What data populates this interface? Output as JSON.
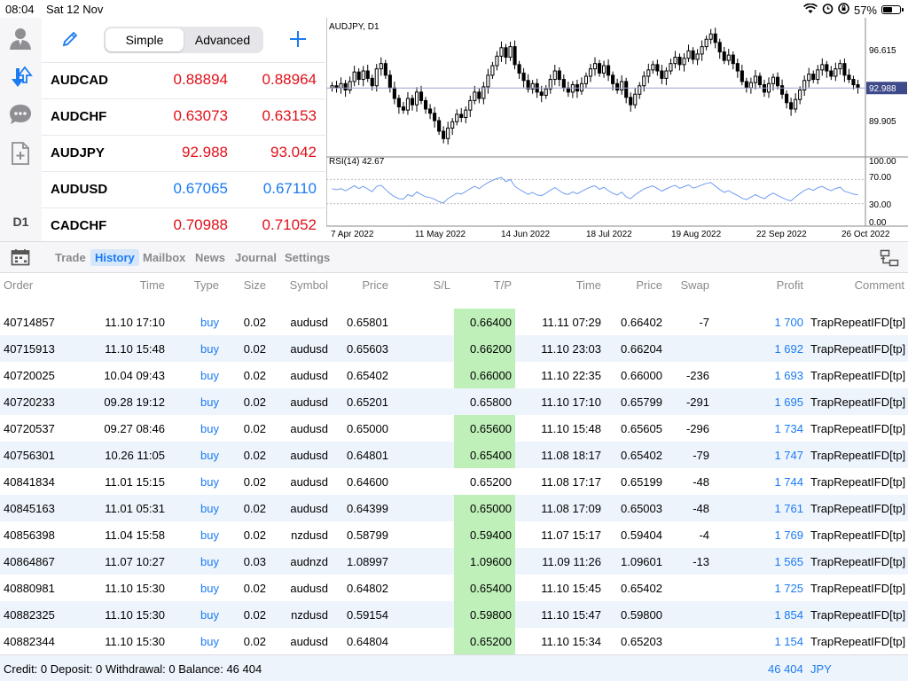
{
  "status_bar": {
    "time": "08:04",
    "date": "Sat 12 Nov",
    "battery": "57%"
  },
  "sidebar": {
    "timeframe": "D1"
  },
  "quotes": {
    "mode_simple": "Simple",
    "mode_advanced": "Advanced",
    "items": [
      {
        "symbol": "AUDCAD",
        "bid": "0.88894",
        "ask": "0.88964",
        "color": "red"
      },
      {
        "symbol": "AUDCHF",
        "bid": "0.63073",
        "ask": "0.63153",
        "color": "red"
      },
      {
        "symbol": "AUDJPY",
        "bid": "92.988",
        "ask": "93.042",
        "color": "red"
      },
      {
        "symbol": "AUDUSD",
        "bid": "0.67065",
        "ask": "0.67110",
        "color": "blue"
      },
      {
        "symbol": "CADCHF",
        "bid": "0.70988",
        "ask": "0.71052",
        "color": "red"
      }
    ]
  },
  "chart": {
    "title": "AUDJPY, D1",
    "price_ticks": [
      "96.615",
      "89.905"
    ],
    "current_price": "92.988",
    "rsi_label": "RSI(14) 42.67",
    "rsi_ticks": [
      "100.00",
      "70.00",
      "30.00",
      "0.00"
    ],
    "date_labels": [
      "7 Apr 2022",
      "11 May 2022",
      "14 Jun 2022",
      "18 Jul 2022",
      "19 Aug 2022",
      "22 Sep 2022",
      "26 Oct 2022"
    ]
  },
  "tabs": [
    "Trade",
    "History",
    "Mailbox",
    "News",
    "Journal",
    "Settings"
  ],
  "history": {
    "columns": [
      "Order",
      "Time",
      "Type",
      "Size",
      "Symbol",
      "Price",
      "S/L",
      "T/P",
      "Time",
      "Price",
      "Swap",
      "Profit",
      "Comment"
    ],
    "rows": [
      [
        "40714857",
        "11.10 17:10",
        "buy",
        "0.02",
        "audusd",
        "0.65801",
        "",
        "0.66400",
        "11.11 07:29",
        "0.66402",
        "-7",
        "1 700",
        "TrapRepeatIFD[tp]"
      ],
      [
        "40715913",
        "11.10 15:48",
        "buy",
        "0.02",
        "audusd",
        "0.65603",
        "",
        "0.66200",
        "11.10 23:03",
        "0.66204",
        "",
        "1 692",
        "TrapRepeatIFD[tp]"
      ],
      [
        "40720025",
        "10.04 09:43",
        "buy",
        "0.02",
        "audusd",
        "0.65402",
        "",
        "0.66000",
        "11.10 22:35",
        "0.66000",
        "-236",
        "1 693",
        "TrapRepeatIFD[tp]"
      ],
      [
        "40720233",
        "09.28 19:12",
        "buy",
        "0.02",
        "audusd",
        "0.65201",
        "",
        "0.65800",
        "11.10 17:10",
        "0.65799",
        "-291",
        "1 695",
        "TrapRepeatIFD[tp]"
      ],
      [
        "40720537",
        "09.27 08:46",
        "buy",
        "0.02",
        "audusd",
        "0.65000",
        "",
        "0.65600",
        "11.10 15:48",
        "0.65605",
        "-296",
        "1 734",
        "TrapRepeatIFD[tp]"
      ],
      [
        "40756301",
        "10.26 11:05",
        "buy",
        "0.02",
        "audusd",
        "0.64801",
        "",
        "0.65400",
        "11.08 18:17",
        "0.65402",
        "-79",
        "1 747",
        "TrapRepeatIFD[tp]"
      ],
      [
        "40841834",
        "11.01 15:15",
        "buy",
        "0.02",
        "audusd",
        "0.64600",
        "",
        "0.65200",
        "11.08 17:17",
        "0.65199",
        "-48",
        "1 744",
        "TrapRepeatIFD[tp]"
      ],
      [
        "40845163",
        "11.01 05:31",
        "buy",
        "0.02",
        "audusd",
        "0.64399",
        "",
        "0.65000",
        "11.08 17:09",
        "0.65003",
        "-48",
        "1 761",
        "TrapRepeatIFD[tp]"
      ],
      [
        "40856398",
        "11.04 15:58",
        "buy",
        "0.02",
        "nzdusd",
        "0.58799",
        "",
        "0.59400",
        "11.07 15:17",
        "0.59404",
        "-4",
        "1 769",
        "TrapRepeatIFD[tp]"
      ],
      [
        "40864867",
        "11.07 10:27",
        "buy",
        "0.03",
        "audnzd",
        "1.08997",
        "",
        "1.09600",
        "11.09 11:26",
        "1.09601",
        "-13",
        "1 565",
        "TrapRepeatIFD[tp]"
      ],
      [
        "40880981",
        "11.10 15:30",
        "buy",
        "0.02",
        "audusd",
        "0.64802",
        "",
        "0.65400",
        "11.10 15:45",
        "0.65402",
        "",
        "1 725",
        "TrapRepeatIFD[tp]"
      ],
      [
        "40882325",
        "11.10 15:30",
        "buy",
        "0.02",
        "nzdusd",
        "0.59154",
        "",
        "0.59800",
        "11.10 15:47",
        "0.59800",
        "",
        "1 854",
        "TrapRepeatIFD[tp]"
      ],
      [
        "40882344",
        "11.10 15:30",
        "buy",
        "0.02",
        "audusd",
        "0.64804",
        "",
        "0.65200",
        "11.10 15:34",
        "0.65203",
        "",
        "1 154",
        "TrapRepeatIFD[tp]"
      ]
    ],
    "tp_highlight": [
      true,
      true,
      true,
      false,
      true,
      true,
      false,
      true,
      true,
      true,
      true,
      true,
      true
    ],
    "alt_rows": [
      false,
      true,
      false,
      true,
      false,
      true,
      false,
      true,
      false,
      true,
      false,
      true,
      false
    ]
  },
  "footer": {
    "summary": "Credit: 0 Deposit: 0 Withdrawal: 0 Balance: 46 404",
    "total": "46 404",
    "currency": "JPY"
  },
  "colors": {
    "bid_red": "#e0101a",
    "bid_blue": "#1a7bf2",
    "tp_green": "#bff0b9",
    "row_alt": "#eef4fc",
    "accent": "#1a7bf2"
  }
}
